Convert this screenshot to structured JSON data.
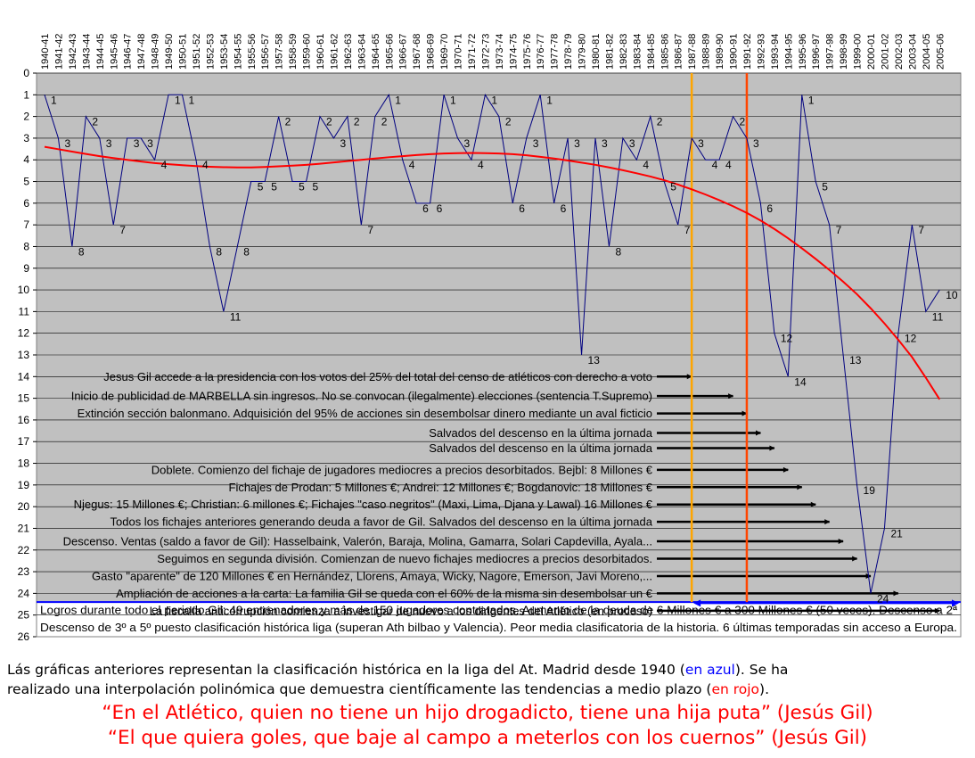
{
  "chart_data": {
    "type": "line",
    "categories": [
      "1940-41",
      "1941-42",
      "1942-43",
      "1943-44",
      "1944-45",
      "1945-46",
      "1946-47",
      "1947-48",
      "1948-49",
      "1949-50",
      "1950-51",
      "1951-52",
      "1952-53",
      "1953-54",
      "1954-55",
      "1955-56",
      "1956-57",
      "1957-58",
      "1958-59",
      "1959-60",
      "1960-61",
      "1961-62",
      "1962-63",
      "1963-64",
      "1964-65",
      "1965-66",
      "1966-67",
      "1967-68",
      "1968-69",
      "1969-70",
      "1970-71",
      "1971-72",
      "1972-73",
      "1973-74",
      "1974-75",
      "1975-76",
      "1976-77",
      "1977-78",
      "1978-79",
      "1979-80",
      "1980-81",
      "1981-82",
      "1982-83",
      "1983-84",
      "1984-85",
      "1985-86",
      "1986-87",
      "1987-88",
      "1988-89",
      "1989-90",
      "1990-91",
      "1991-92",
      "1992-93",
      "1993-94",
      "1994-95",
      "1995-96",
      "1996-97",
      "1997-98",
      "1998-99",
      "1999-00",
      "2000-01",
      "2001-02",
      "2002-03",
      "2003-04",
      "2004-05",
      "2005-06"
    ],
    "series": [
      {
        "color": "#000080",
        "values": [
          1,
          3,
          8,
          2,
          3,
          7,
          3,
          3,
          4,
          1,
          1,
          4,
          8,
          11,
          8,
          5,
          5,
          2,
          5,
          5,
          2,
          3,
          2,
          7,
          2,
          1,
          4,
          6,
          6,
          1,
          3,
          4,
          1,
          2,
          6,
          3,
          1,
          6,
          3,
          13,
          3,
          8,
          3,
          4,
          2,
          5,
          7,
          3,
          4,
          4,
          2,
          3,
          6,
          12,
          14,
          1,
          5,
          7,
          13,
          19,
          24,
          21,
          12,
          7,
          11,
          10
        ]
      },
      {
        "color": "#ff0000",
        "values": [
          3.4,
          3.51,
          3.62,
          3.73,
          3.83,
          3.92,
          4.0,
          4.08,
          4.15,
          4.2,
          4.25,
          4.29,
          4.32,
          4.34,
          4.35,
          4.35,
          4.33,
          4.3,
          4.27,
          4.23,
          4.18,
          4.12,
          4.06,
          4.0,
          3.94,
          3.88,
          3.83,
          3.78,
          3.74,
          3.71,
          3.69,
          3.68,
          3.69,
          3.71,
          3.74,
          3.79,
          3.86,
          3.94,
          4.03,
          4.13,
          4.23,
          4.35,
          4.48,
          4.62,
          4.77,
          4.94,
          5.14,
          5.36,
          5.6,
          5.86,
          6.14,
          6.45,
          6.8,
          7.19,
          7.62,
          8.08,
          8.57,
          9.08,
          9.62,
          10.2,
          10.85,
          11.55,
          12.3,
          13.1,
          14.05,
          15.05
        ]
      }
    ],
    "y_ticks": [
      0,
      1,
      2,
      3,
      4,
      5,
      6,
      7,
      8,
      9,
      10,
      11,
      12,
      13,
      14,
      15,
      16,
      17,
      18,
      19,
      20,
      21,
      22,
      23,
      24,
      25,
      26
    ],
    "ylim": [
      0,
      26
    ],
    "y_inverted": true,
    "grid": true,
    "point_labels": [
      "1",
      "3",
      "8",
      "2",
      "3",
      "7",
      "3",
      "3",
      "4",
      "1",
      "1",
      "4",
      "8",
      "11",
      "8",
      "5",
      "5",
      "2",
      "5",
      "5",
      "2",
      "3",
      "2",
      "7",
      "2",
      "1",
      "4",
      "6",
      "6",
      "1",
      "3",
      "4",
      "1",
      "2",
      "6",
      "3",
      "1",
      "6",
      "3",
      "13",
      "3",
      "8",
      "3",
      "4",
      "2",
      "5",
      "7",
      "3",
      "4",
      "4",
      "2",
      "3",
      "6",
      "12",
      "14",
      "1",
      "5",
      "7",
      "13",
      "19",
      "24",
      "21",
      "12",
      "7",
      "11",
      "10"
    ],
    "vertical_markers": [
      {
        "x": "1987-88",
        "color": "#ffa500"
      },
      {
        "x": "1991-92",
        "color": "#ff4500"
      }
    ],
    "annotations": [
      {
        "text": "Jesus Gil accede a la presidencia con los votos del 25% del total del censo de atléticos con derecho a voto",
        "y": 14,
        "arrow_to": "1987-88"
      },
      {
        "text": "Inicio de publicidad de MARBELLA sin ingresos. No se convocan (ilegalmente) elecciones (sentencia T.Supremo)",
        "y": 14.9,
        "arrow_to": "1990-91"
      },
      {
        "text": "Extinción sección balonmano. Adquisición del 95% de acciones sin desembolsar dinero mediante un aval ficticio",
        "y": 15.7,
        "arrow_to": "1991-92"
      },
      {
        "text": "Salvados del descenso en la última jornada",
        "y": 16.6,
        "arrow_to": "1992-93"
      },
      {
        "text": "Salvados del descenso en la última jornada",
        "y": 17.3,
        "arrow_to": "1993-94"
      },
      {
        "text": "Doblete. Comienzo del fichaje de jugadores mediocres a precios desorbitados. Bejbl: 8 Millones €",
        "y": 18.3,
        "arrow_to": "1994-95"
      },
      {
        "text": "Fichajes de Prodan: 5 Millones €;     Andrei: 12 Millones €;     Bogdanovic: 18 Millones €",
        "y": 19.1,
        "arrow_to": "1995-96"
      },
      {
        "text": "Njegus: 15 Millones €; Christian: 6 millones €; Fichajes \"caso negritos\" (Maxi, Lima, Djana y Lawal) 16 Millones €",
        "y": 19.9,
        "arrow_to": "1996-97"
      },
      {
        "text": "Todos los fichajes anteriores generando deuda a favor de Gil. Salvados del descenso en la última jornada",
        "y": 20.7,
        "arrow_to": "1997-98"
      },
      {
        "text": "Descenso. Ventas (saldo a favor de Gil): Hasselbaink, Valerón, Baraja, Molina, Gamarra, Solari Capdevilla, Ayala...",
        "y": 21.6,
        "arrow_to": "1998-99"
      },
      {
        "text": "Seguimos en segunda división. Comienzan de nuevo fichajes mediocres a precios desorbitados.",
        "y": 22.4,
        "arrow_to": "1999-00"
      },
      {
        "text": "Gasto \"aparente\" de 120 Millones € en Hernández, Llorens, Amaya, Wicky, Nagore, Emerson, Javi Moreno,...",
        "y": 23.2,
        "arrow_to": "2000-01"
      },
      {
        "text": "Ampliación de acciones a la carta: La familia Gil se queda con el 60% de la misma sin desembolsar un €",
        "y": 24.0,
        "arrow_to": "2002-03"
      },
      {
        "text": "La fiscalía anticorrupción comienza a investigar de nuevo a los dirigentes del Atlético (en proceso)",
        "y": 24.8,
        "arrow_to": "2005-06"
      }
    ],
    "summary_lines": [
      "Logros durante todo el periodo Gil: 49 entrenadores y más de 150 jugadores contratados. Aumento de la deuda de 6 Millones € a 300 Millones € (50 veces). Descenso a 2ª",
      "Descenso de 3º a 5º puesto clasificación histórica liga (superan Ath bilbao y Valencia). Peor media clasificatoria de la historia. 6 últimas temporadas sin acceso a Europa."
    ]
  },
  "caption": {
    "line1_a": "Lás gráficas anteriores representan la clasificación histórica en la liga del At. Madrid desde 1940 (",
    "line1_blue": "en azul",
    "line1_b": "). Se ha",
    "line2_a": "realizado una interpolación polinómica que demuestra científicamente las tendencias a medio plazo (",
    "line2_red": "en rojo",
    "line2_b": ")."
  },
  "quotes": [
    "“En el Atlético, quien no tiene un hijo drogadicto, tiene una hija puta” (Jesús Gil)",
    "“El que quiera goles, que baje al campo a meterlos con los cuernos” (Jesús Gil)"
  ],
  "colors": {
    "plot_background": "#c0c0c0",
    "ranking_line": "#000080",
    "trend_line": "#ff0000",
    "marker_1": "#ffa500",
    "marker_2": "#ff4500",
    "summary_box_border": "#0000ff"
  }
}
